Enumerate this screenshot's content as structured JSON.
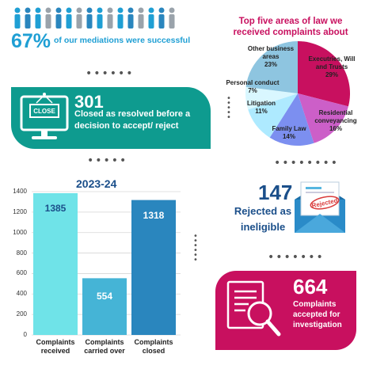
{
  "mediations": {
    "percent": "67%",
    "text": "of our mediations were successful",
    "people_icon": "people-with-disabilities-row-icon"
  },
  "pie": {
    "title": "Top five areas of law we received complaints about",
    "labels": [
      {
        "name": "Executries, Will and Trusts",
        "pct": "29%"
      },
      {
        "name": "Residential conveyancing",
        "pct": "16%"
      },
      {
        "name": "Family Law",
        "pct": "14%"
      },
      {
        "name": "Litigation",
        "pct": "11%"
      },
      {
        "name": "Personal conduct",
        "pct": "7%"
      },
      {
        "name": "Other business areas",
        "pct": "23%"
      }
    ]
  },
  "closed_resolved": {
    "number": "301",
    "text": "Closed as resolved before a decision to accept/ reject",
    "sign_text": "CLOSE",
    "icon": "monitor-close-sign-icon"
  },
  "rejected": {
    "number": "147",
    "text": "Rejected as ineligible",
    "stamp_text": "Rejected",
    "icon": "rejected-envelope-icon"
  },
  "accepted": {
    "number": "664",
    "text": "Complaints accepted for investigation",
    "icon": "document-magnifier-icon"
  },
  "colors": {
    "teal": "#0e9b8f",
    "magenta": "#c8105f",
    "navy": "#1b4f8a",
    "blue": "#1f9fd4"
  },
  "chart_data": [
    {
      "type": "pie",
      "title": "Top five areas of law we received complaints about",
      "categories": [
        "Executries, Will and Trusts",
        "Residential conveyancing",
        "Family Law",
        "Litigation",
        "Personal conduct",
        "Other business areas"
      ],
      "values": [
        29,
        16,
        14,
        11,
        7,
        23
      ],
      "colors": [
        "#c8105f",
        "#cc5fc8",
        "#7c8ff0",
        "#aeeaff",
        "#d9f7ff",
        "#8ec5e0"
      ]
    },
    {
      "type": "bar",
      "title": "2023-24",
      "categories": [
        "Complaints received",
        "Complaints carried over",
        "Complaints closed"
      ],
      "values": [
        1385,
        554,
        1318
      ],
      "value_labels": [
        "1385",
        "554",
        "1318"
      ],
      "ylim": [
        0,
        1400
      ],
      "yticks": [
        "0",
        "200",
        "400",
        "600",
        "800",
        "1000",
        "1200",
        "1400"
      ],
      "colors": [
        "#6fe3e8",
        "#45b4d6",
        "#2a86be"
      ],
      "label_colors": [
        "#1b4f8a",
        "#ffffff",
        "#ffffff"
      ],
      "grid": true
    }
  ]
}
